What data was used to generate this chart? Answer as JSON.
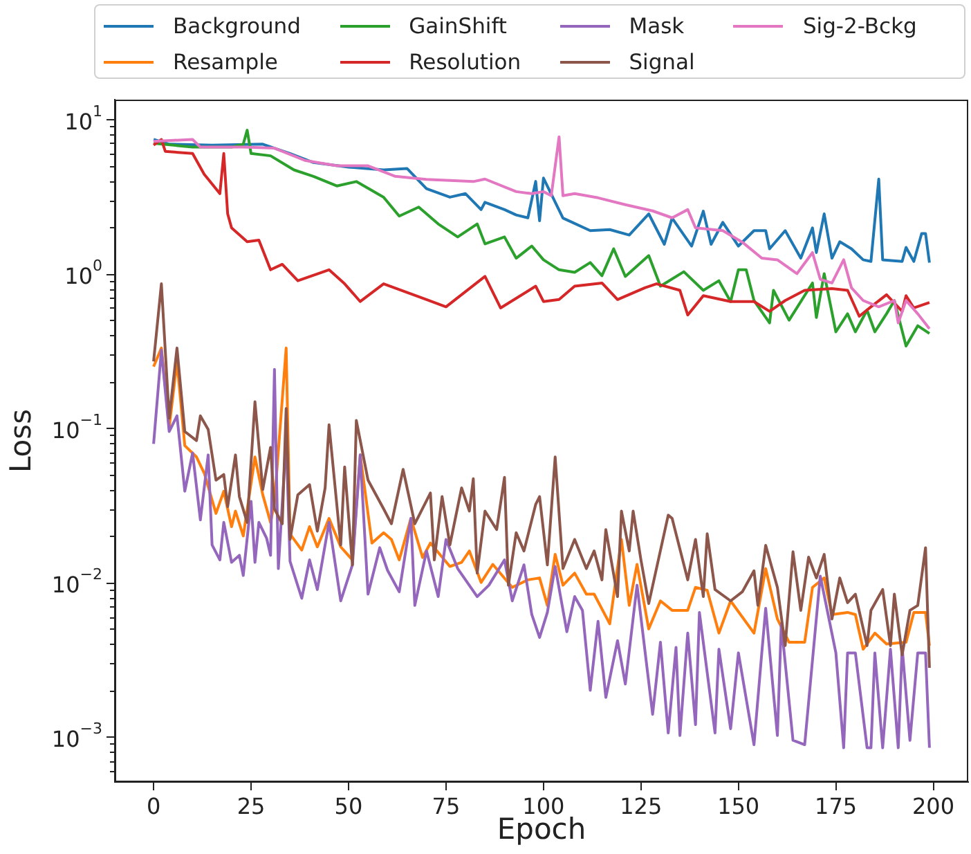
{
  "chart_data": {
    "type": "line",
    "xlabel": "Epoch",
    "ylabel": "Loss",
    "log": "y",
    "grid": false,
    "legend": "top",
    "xlim": [
      -9.95,
      208.95
    ],
    "xticks": [
      0,
      25,
      50,
      75,
      100,
      125,
      150,
      175,
      200
    ],
    "ylim": [
      0.00051,
      13.4
    ],
    "yticks": [
      {
        "value": 0.0006,
        "label": null
      },
      {
        "value": 0.0007,
        "label": null
      },
      {
        "value": 0.0008,
        "label": null
      },
      {
        "value": 0.0009,
        "label": null
      },
      {
        "value": 0.001,
        "label": "10$^{−3}$"
      },
      {
        "value": 0.002,
        "label": null
      },
      {
        "value": 0.003,
        "label": null
      },
      {
        "value": 0.004,
        "label": null
      },
      {
        "value": 0.005,
        "label": null
      },
      {
        "value": 0.006,
        "label": null
      },
      {
        "value": 0.007,
        "label": null
      },
      {
        "value": 0.008,
        "label": null
      },
      {
        "value": 0.009,
        "label": null
      },
      {
        "value": 0.01,
        "label": "10$^{−2}$"
      },
      {
        "value": 0.02,
        "label": null
      },
      {
        "value": 0.03,
        "label": null
      },
      {
        "value": 0.04,
        "label": null
      },
      {
        "value": 0.05,
        "label": null
      },
      {
        "value": 0.06,
        "label": null
      },
      {
        "value": 0.07,
        "label": null
      },
      {
        "value": 0.08,
        "label": null
      },
      {
        "value": 0.09,
        "label": null
      },
      {
        "value": 0.1,
        "label": "10$^{−1}$"
      },
      {
        "value": 0.2,
        "label": null
      },
      {
        "value": 0.3,
        "label": null
      },
      {
        "value": 0.4,
        "label": null
      },
      {
        "value": 0.5,
        "label": null
      },
      {
        "value": 0.6,
        "label": null
      },
      {
        "value": 0.7,
        "label": null
      },
      {
        "value": 0.8,
        "label": null
      },
      {
        "value": 0.9,
        "label": null
      },
      {
        "value": 1,
        "label": "10$^{0}$"
      },
      {
        "value": 2,
        "label": null
      },
      {
        "value": 3,
        "label": null
      },
      {
        "value": 4,
        "label": null
      },
      {
        "value": 5,
        "label": null
      },
      {
        "value": 6,
        "label": null
      },
      {
        "value": 7,
        "label": null
      },
      {
        "value": 8,
        "label": null
      },
      {
        "value": 9,
        "label": null
      },
      {
        "value": 10,
        "label": "10$^{1}$"
      }
    ],
    "series": [
      {
        "name": "Background",
        "color": "#1f77b4",
        "x": [
          0,
          4,
          15,
          28,
          35,
          41,
          50,
          59,
          65,
          70,
          76,
          80,
          84,
          85,
          90,
          93,
          96,
          98,
          99,
          100,
          105,
          112,
          117,
          122,
          127,
          131,
          133,
          138,
          141,
          143,
          146,
          150,
          154,
          157,
          158,
          162,
          166,
          169,
          170,
          172,
          174,
          176,
          179,
          182,
          184,
          186,
          187,
          192,
          193,
          195,
          197,
          198,
          199
        ],
        "values": [
          7.4,
          6.9,
          6.8,
          6.9,
          6.0,
          5.25,
          4.9,
          4.7,
          4.8,
          3.55,
          3.13,
          3.3,
          2.6,
          2.9,
          2.6,
          2.4,
          2.3,
          3.96,
          2.2,
          4.16,
          2.29,
          1.9,
          1.93,
          1.78,
          2.44,
          1.55,
          2.29,
          1.51,
          2.54,
          1.55,
          2.15,
          1.51,
          1.9,
          1.9,
          1.45,
          1.9,
          1.26,
          1.98,
          1.37,
          2.44,
          1.26,
          1.61,
          1.45,
          1.23,
          1.2,
          4.1,
          1.23,
          1.2,
          1.48,
          1.2,
          1.82,
          1.82,
          1.18
        ]
      },
      {
        "name": "Resample",
        "color": "#ff7f0e",
        "x": [
          0,
          2,
          4,
          6,
          8,
          11,
          13,
          16,
          18,
          20,
          21,
          23,
          26,
          28,
          30,
          31,
          34,
          35,
          38,
          40,
          42,
          45,
          48,
          51,
          53,
          56,
          59,
          61,
          63,
          66,
          69,
          71,
          76,
          79,
          81,
          84,
          87,
          92,
          96,
          99,
          101,
          103,
          105,
          108,
          111,
          113,
          117,
          120,
          122,
          124,
          127,
          130,
          133,
          137,
          139,
          142,
          145,
          148,
          154,
          157,
          160,
          163,
          167,
          169,
          172,
          174,
          178,
          180,
          182,
          185,
          188,
          193,
          195,
          198,
          199
        ],
        "values": [
          0.25,
          0.33,
          0.101,
          0.27,
          0.077,
          0.065,
          0.051,
          0.028,
          0.039,
          0.023,
          0.029,
          0.02,
          0.065,
          0.037,
          0.0245,
          0.033,
          0.33,
          0.0206,
          0.0162,
          0.023,
          0.017,
          0.026,
          0.017,
          0.014,
          0.067,
          0.018,
          0.021,
          0.019,
          0.014,
          0.026,
          0.0145,
          0.018,
          0.0127,
          0.0135,
          0.016,
          0.01,
          0.0131,
          0.0093,
          0.0104,
          0.0107,
          0.0071,
          0.0152,
          0.0096,
          0.0115,
          0.0084,
          0.0084,
          0.0054,
          0.019,
          0.0071,
          0.0131,
          0.005,
          0.0076,
          0.0066,
          0.0066,
          0.0093,
          0.0089,
          0.0047,
          0.0076,
          0.0047,
          0.0123,
          0.0058,
          0.0041,
          0.0041,
          0.0093,
          0.0107,
          0.0062,
          0.0064,
          0.0062,
          0.0037,
          0.0047,
          0.004,
          0.0041,
          0.0064,
          0.0064,
          0.0039
        ]
      },
      {
        "name": "GainShift",
        "color": "#2ca02c",
        "x": [
          0,
          10,
          20,
          23,
          24,
          25,
          30,
          36,
          41,
          47,
          52,
          59,
          63,
          68,
          73,
          78,
          83,
          85,
          90,
          93,
          97,
          100,
          104,
          108,
          112,
          115,
          118,
          121,
          127,
          130,
          136,
          141,
          145,
          148,
          150,
          152,
          154,
          158,
          159,
          163,
          169,
          170,
          172,
          175,
          178,
          180,
          183,
          185,
          188,
          190,
          193,
          196,
          199
        ],
        "values": [
          7.0,
          6.6,
          6.6,
          6.9,
          8.5,
          6.0,
          5.8,
          4.7,
          4.27,
          3.7,
          3.95,
          3.13,
          2.36,
          2.7,
          2.1,
          1.73,
          2.1,
          1.56,
          1.73,
          1.26,
          1.51,
          1.23,
          1.06,
          1.02,
          1.18,
          0.97,
          1.45,
          0.96,
          1.31,
          0.83,
          1.03,
          0.78,
          0.9,
          0.66,
          1.06,
          1.06,
          0.67,
          0.48,
          0.78,
          0.5,
          0.87,
          0.52,
          1.0,
          0.42,
          0.55,
          0.42,
          0.58,
          0.42,
          0.55,
          0.67,
          0.34,
          0.46,
          0.41
        ]
      },
      {
        "name": "Resolution",
        "color": "#d62728",
        "x": [
          0,
          2,
          3,
          10,
          13,
          17,
          18,
          19,
          20,
          24,
          27,
          30,
          33,
          37,
          45,
          49,
          53,
          59,
          70,
          75,
          85,
          89,
          98,
          100,
          104,
          108,
          115,
          119,
          126,
          129,
          135,
          137,
          141,
          148,
          154,
          158,
          162,
          167,
          174,
          178,
          181,
          184,
          188,
          192,
          193,
          195,
          199
        ],
        "values": [
          6.8,
          7.4,
          6.2,
          6.0,
          4.4,
          3.3,
          6.0,
          2.44,
          1.98,
          1.61,
          1.65,
          1.06,
          1.15,
          0.9,
          1.06,
          0.86,
          0.66,
          0.86,
          0.68,
          0.61,
          0.96,
          0.6,
          0.83,
          0.66,
          0.68,
          0.83,
          0.87,
          0.68,
          0.81,
          0.86,
          0.78,
          0.54,
          0.72,
          0.66,
          0.66,
          0.57,
          0.67,
          0.78,
          0.8,
          0.78,
          0.53,
          0.61,
          0.73,
          0.57,
          0.72,
          0.6,
          0.65
        ]
      },
      {
        "name": "Mask",
        "color": "#9467bd",
        "x": [
          0,
          2,
          4,
          6,
          8,
          10,
          12,
          14,
          15,
          17,
          18,
          20,
          22,
          23,
          25,
          26,
          27,
          29,
          30,
          31,
          32,
          34,
          35,
          38,
          40,
          42,
          45,
          48,
          51,
          53,
          55,
          58,
          60,
          63,
          66,
          67,
          70,
          73,
          75,
          78,
          83,
          86,
          90,
          92,
          95,
          97,
          99,
          101,
          103,
          106,
          108,
          110,
          112,
          114,
          116,
          119,
          121,
          124,
          128,
          130,
          132,
          134,
          135,
          137,
          139,
          140,
          144,
          145,
          148,
          150,
          154,
          156,
          157,
          160,
          161,
          164,
          167,
          171,
          175,
          177,
          178,
          180,
          183,
          184,
          185,
          187,
          189,
          191,
          192,
          194,
          196,
          198,
          199
        ],
        "values": [
          0.079,
          0.32,
          0.095,
          0.12,
          0.039,
          0.069,
          0.0254,
          0.067,
          0.0175,
          0.014,
          0.0245,
          0.0135,
          0.015,
          0.0111,
          0.0335,
          0.0135,
          0.0245,
          0.0193,
          0.015,
          0.24,
          0.0123,
          0.085,
          0.0137,
          0.0079,
          0.014,
          0.009,
          0.0245,
          0.0076,
          0.013,
          0.067,
          0.0084,
          0.0168,
          0.012,
          0.0087,
          0.026,
          0.0071,
          0.016,
          0.0081,
          0.019,
          0.0123,
          0.0081,
          0.0096,
          0.014,
          0.0076,
          0.013,
          0.0062,
          0.0044,
          0.0064,
          0.0127,
          0.0048,
          0.0081,
          0.0066,
          0.002,
          0.0056,
          0.0018,
          0.0042,
          0.0022,
          0.0096,
          0.0014,
          0.0041,
          0.00106,
          0.0038,
          0.00102,
          0.0047,
          0.0012,
          0.0064,
          0.00106,
          0.0037,
          0.00113,
          0.0035,
          0.00089,
          0.0035,
          0.0068,
          0.00102,
          0.0054,
          0.00095,
          0.00089,
          0.011,
          0.0035,
          0.00085,
          0.0035,
          0.0035,
          0.00085,
          0.00085,
          0.0035,
          0.00085,
          0.0037,
          0.00085,
          0.0038,
          0.00095,
          0.0035,
          0.0035,
          0.00085
        ]
      },
      {
        "name": "Signal",
        "color": "#8c564b",
        "x": [
          0,
          2,
          4,
          6,
          8,
          11,
          12,
          14,
          16,
          18,
          19,
          21,
          22,
          24,
          26,
          28,
          30,
          31,
          33,
          34,
          35,
          37,
          40,
          42,
          44,
          45,
          48,
          49,
          51,
          52,
          55,
          59,
          61,
          64,
          67,
          71,
          72,
          74,
          76,
          79,
          81,
          82,
          83,
          85,
          88,
          90,
          91,
          93,
          95,
          98,
          99,
          101,
          103,
          105,
          108,
          111,
          113,
          115,
          116,
          119,
          120,
          122,
          123,
          125,
          127,
          132,
          133,
          137,
          139,
          141,
          142,
          144,
          148,
          151,
          154,
          155,
          157,
          160,
          162,
          164,
          166,
          168,
          170,
          172,
          174,
          176,
          178,
          180,
          183,
          184,
          187,
          189,
          190,
          192,
          194,
          196,
          198,
          199
        ],
        "values": [
          0.27,
          0.86,
          0.116,
          0.33,
          0.095,
          0.083,
          0.12,
          0.098,
          0.046,
          0.05,
          0.031,
          0.067,
          0.036,
          0.0245,
          0.148,
          0.04,
          0.075,
          0.03,
          0.024,
          0.134,
          0.019,
          0.037,
          0.043,
          0.0215,
          0.041,
          0.105,
          0.0175,
          0.056,
          0.013,
          0.112,
          0.046,
          0.03,
          0.024,
          0.054,
          0.024,
          0.038,
          0.014,
          0.036,
          0.0175,
          0.041,
          0.029,
          0.047,
          0.0115,
          0.029,
          0.022,
          0.048,
          0.0096,
          0.021,
          0.016,
          0.032,
          0.036,
          0.013,
          0.065,
          0.0123,
          0.019,
          0.0123,
          0.016,
          0.0104,
          0.022,
          0.0081,
          0.029,
          0.016,
          0.029,
          0.014,
          0.0073,
          0.0273,
          0.026,
          0.0104,
          0.019,
          0.0081,
          0.0207,
          0.009,
          0.0076,
          0.0087,
          0.0119,
          0.0071,
          0.0174,
          0.0093,
          0.0039,
          0.0158,
          0.0066,
          0.0146,
          0.0107,
          0.0152,
          0.0058,
          0.0107,
          0.0074,
          0.0084,
          0.0039,
          0.0066,
          0.009,
          0.0039,
          0.0084,
          0.0034,
          0.0066,
          0.0071,
          0.0168,
          0.0028
        ]
      },
      {
        "name": "Sig-2-Bckg",
        "color": "#e377c2",
        "x": [
          0,
          10,
          12,
          23,
          31,
          39,
          47,
          55,
          62,
          70,
          82,
          85,
          93,
          97,
          100,
          102,
          104,
          105,
          108,
          114,
          121,
          128,
          133,
          137,
          139,
          146,
          151,
          156,
          160,
          165,
          169,
          171,
          174,
          177,
          179,
          182,
          186,
          190,
          191,
          193,
          196,
          199
        ],
        "values": [
          7.2,
          7.4,
          6.6,
          6.6,
          6.5,
          5.4,
          5.0,
          5.0,
          4.27,
          4.08,
          3.95,
          4.1,
          3.4,
          3.3,
          3.4,
          3.2,
          7.7,
          3.2,
          3.3,
          3.1,
          2.8,
          2.55,
          2.3,
          2.6,
          1.98,
          1.9,
          1.6,
          1.26,
          1.23,
          1.0,
          1.37,
          0.92,
          0.87,
          1.23,
          0.81,
          0.67,
          0.61,
          0.67,
          0.48,
          0.67,
          0.55,
          0.44
        ]
      }
    ]
  }
}
